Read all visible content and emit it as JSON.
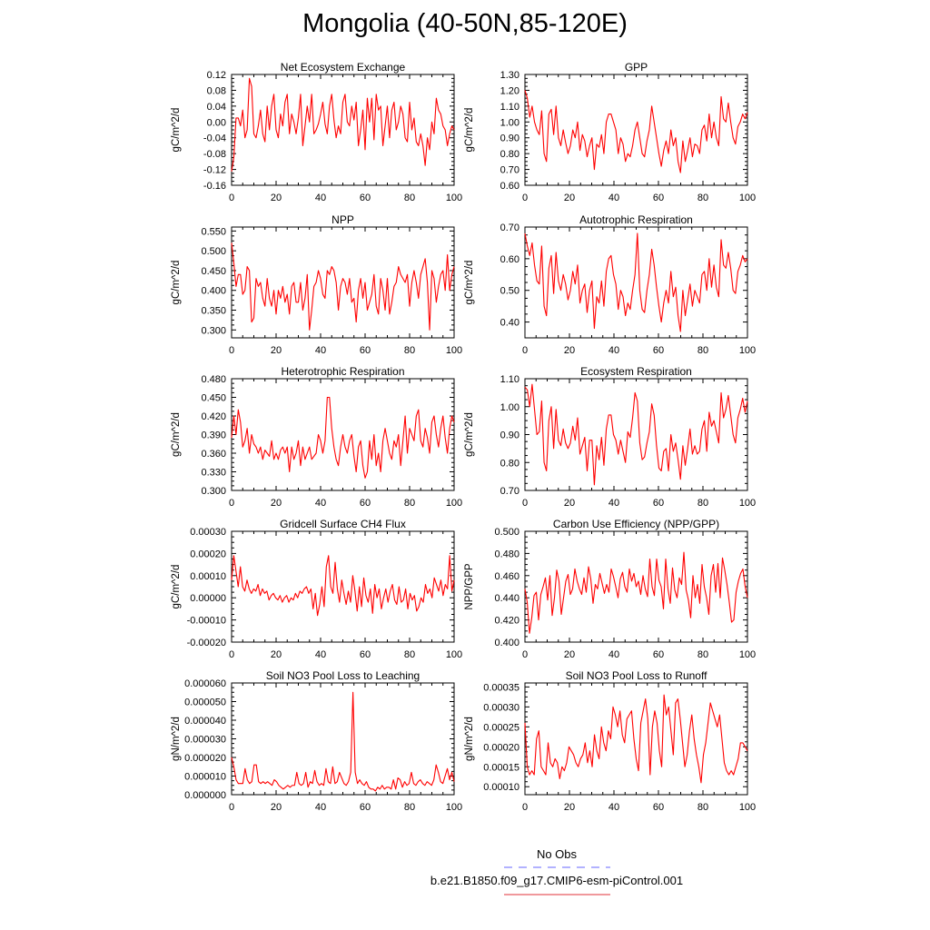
{
  "title": "Mongolia (40-50N,85-120E)",
  "legend": [
    {
      "label": "No Obs",
      "color": "#6666ff",
      "dash": true
    },
    {
      "label": "b.e21.B1850.f09_g17.CMIP6-esm-piControl.001",
      "color": "#e0303a",
      "dash": false
    }
  ],
  "line_color": "#ff0000",
  "chart_data": [
    {
      "type": "line",
      "title": "Net Ecosystem Exchange",
      "ylabel": "gC/m^2/d",
      "xlim": [
        0,
        100
      ],
      "ylim": [
        -0.16,
        0.12
      ],
      "xticks": [
        "0",
        "20",
        "40",
        "60",
        "80",
        "100"
      ],
      "yticks": [
        "-0.16",
        "-0.12",
        "-0.08",
        "-0.04",
        "0.00",
        "0.04",
        "0.08",
        "0.12"
      ],
      "values": [
        -0.125,
        -0.09,
        0.01,
        0.01,
        -0.01,
        0.03,
        -0.04,
        -0.02,
        0.11,
        0.09,
        -0.03,
        -0.04,
        -0.01,
        0.03,
        -0.03,
        -0.05,
        0.04,
        -0.02,
        0.04,
        0.07,
        -0.02,
        -0.04,
        0.02,
        -0.01,
        0.05,
        0.07,
        -0.03,
        0.02,
        0.0,
        -0.03,
        0.01,
        0.07,
        -0.06,
        -0.01,
        0.04,
        0.0,
        0.07,
        -0.03,
        -0.02,
        -0.005,
        0.02,
        0.05,
        -0.005,
        -0.03,
        0.04,
        0.07,
        0.005,
        -0.04,
        -0.01,
        -0.03,
        0.05,
        0.07,
        0.0,
        -0.01,
        0.04,
        0.005,
        0.05,
        -0.06,
        -0.02,
        0.03,
        -0.07,
        0.06,
        0.0,
        0.06,
        -0.045,
        0.07,
        0.03,
        0.04,
        -0.06,
        -0.01,
        0.04,
        -0.04,
        0.03,
        0.05,
        -0.02,
        0.0,
        0.04,
        0.02,
        -0.04,
        -0.05,
        0.05,
        -0.02,
        0.01,
        -0.05,
        -0.06,
        -0.03,
        -0.06,
        -0.11,
        -0.04,
        -0.07,
        0.0,
        -0.03,
        0.06,
        0.03,
        0.02,
        -0.01,
        -0.02,
        -0.06,
        -0.03,
        -0.01,
        -0.02
      ]
    },
    {
      "type": "line",
      "title": "GPP",
      "ylabel": "gC/m^2/d",
      "xlim": [
        0,
        100
      ],
      "ylim": [
        0.6,
        1.3
      ],
      "xticks": [
        "0",
        "20",
        "40",
        "60",
        "80",
        "100"
      ],
      "yticks": [
        "0.60",
        "0.70",
        "0.80",
        "0.90",
        "1.00",
        "1.10",
        "1.20",
        "1.30"
      ],
      "values": [
        1.2,
        1.15,
        1.03,
        1.1,
        1.0,
        0.95,
        0.92,
        1.07,
        0.8,
        0.75,
        1.05,
        1.08,
        0.92,
        1.1,
        0.9,
        0.85,
        0.95,
        0.87,
        0.8,
        0.85,
        0.95,
        0.9,
        1.0,
        0.82,
        0.92,
        0.88,
        0.78,
        0.85,
        0.9,
        0.7,
        0.86,
        0.84,
        0.92,
        0.8,
        1.0,
        1.05,
        1.05,
        1.0,
        0.95,
        0.8,
        0.9,
        0.86,
        0.75,
        0.8,
        0.78,
        0.85,
        0.95,
        1.0,
        0.9,
        0.8,
        0.78,
        0.88,
        0.95,
        1.1,
        1.0,
        0.9,
        0.8,
        0.72,
        0.82,
        0.88,
        0.8,
        0.95,
        0.85,
        0.9,
        0.75,
        0.68,
        0.88,
        0.75,
        0.82,
        0.9,
        0.78,
        0.86,
        0.85,
        0.8,
        0.95,
        0.98,
        0.88,
        1.05,
        0.9,
        1.0,
        0.9,
        0.85,
        1.16,
        1.02,
        1.0,
        1.12,
        1.0,
        0.9,
        0.86,
        0.97,
        1.0,
        1.05,
        1.02,
        1.06
      ]
    },
    {
      "type": "line",
      "title": "NPP",
      "ylabel": "gC/m^2/d",
      "xlim": [
        0,
        100
      ],
      "ylim": [
        0.28,
        0.56
      ],
      "xticks": [
        "0",
        "20",
        "40",
        "60",
        "80",
        "100"
      ],
      "yticks": [
        "0.300",
        "0.350",
        "0.400",
        "0.450",
        "0.500",
        "0.550"
      ],
      "values": [
        0.52,
        0.47,
        0.41,
        0.44,
        0.44,
        0.39,
        0.4,
        0.46,
        0.45,
        0.32,
        0.33,
        0.43,
        0.41,
        0.42,
        0.38,
        0.36,
        0.43,
        0.38,
        0.36,
        0.4,
        0.34,
        0.4,
        0.38,
        0.41,
        0.37,
        0.39,
        0.34,
        0.41,
        0.42,
        0.37,
        0.37,
        0.42,
        0.35,
        0.38,
        0.44,
        0.3,
        0.35,
        0.41,
        0.42,
        0.45,
        0.43,
        0.39,
        0.38,
        0.45,
        0.44,
        0.46,
        0.45,
        0.42,
        0.35,
        0.41,
        0.43,
        0.42,
        0.39,
        0.43,
        0.37,
        0.38,
        0.32,
        0.4,
        0.43,
        0.38,
        0.42,
        0.35,
        0.37,
        0.39,
        0.44,
        0.36,
        0.34,
        0.43,
        0.4,
        0.35,
        0.43,
        0.34,
        0.37,
        0.41,
        0.42,
        0.46,
        0.44,
        0.43,
        0.42,
        0.44,
        0.36,
        0.42,
        0.45,
        0.42,
        0.38,
        0.44,
        0.46,
        0.48,
        0.42,
        0.3,
        0.45,
        0.43,
        0.37,
        0.41,
        0.44,
        0.45,
        0.4,
        0.49,
        0.4,
        0.44,
        0.46
      ]
    },
    {
      "type": "line",
      "title": "Autotrophic Respiration",
      "ylabel": "gC/m^2/d",
      "xlim": [
        0,
        100
      ],
      "ylim": [
        0.35,
        0.7
      ],
      "xticks": [
        "0",
        "20",
        "40",
        "60",
        "80",
        "100"
      ],
      "yticks": [
        "0.40",
        "0.50",
        "0.60",
        "0.70"
      ],
      "values": [
        0.68,
        0.64,
        0.61,
        0.65,
        0.58,
        0.53,
        0.52,
        0.64,
        0.45,
        0.42,
        0.57,
        0.61,
        0.49,
        0.62,
        0.53,
        0.5,
        0.55,
        0.52,
        0.47,
        0.5,
        0.56,
        0.52,
        0.58,
        0.46,
        0.5,
        0.52,
        0.43,
        0.5,
        0.53,
        0.38,
        0.48,
        0.46,
        0.53,
        0.45,
        0.56,
        0.6,
        0.61,
        0.55,
        0.52,
        0.44,
        0.5,
        0.48,
        0.42,
        0.46,
        0.44,
        0.5,
        0.55,
        0.68,
        0.5,
        0.44,
        0.43,
        0.5,
        0.55,
        0.63,
        0.58,
        0.51,
        0.45,
        0.4,
        0.46,
        0.5,
        0.46,
        0.56,
        0.48,
        0.51,
        0.42,
        0.37,
        0.5,
        0.42,
        0.47,
        0.52,
        0.45,
        0.5,
        0.48,
        0.46,
        0.55,
        0.56,
        0.5,
        0.6,
        0.51,
        0.58,
        0.51,
        0.48,
        0.66,
        0.58,
        0.57,
        0.62,
        0.57,
        0.5,
        0.49,
        0.56,
        0.58,
        0.61,
        0.59,
        0.6
      ]
    },
    {
      "type": "line",
      "title": "Heterotrophic Respiration",
      "ylabel": "gC/m^2/d",
      "xlim": [
        0,
        100
      ],
      "ylim": [
        0.3,
        0.48
      ],
      "xticks": [
        "0",
        "20",
        "40",
        "60",
        "80",
        "100"
      ],
      "yticks": [
        "0.300",
        "0.330",
        "0.360",
        "0.390",
        "0.420",
        "0.450",
        "0.480"
      ],
      "values": [
        0.385,
        0.42,
        0.39,
        0.43,
        0.41,
        0.37,
        0.38,
        0.4,
        0.36,
        0.39,
        0.375,
        0.37,
        0.36,
        0.37,
        0.35,
        0.365,
        0.36,
        0.355,
        0.38,
        0.35,
        0.36,
        0.35,
        0.365,
        0.37,
        0.36,
        0.37,
        0.33,
        0.37,
        0.35,
        0.36,
        0.38,
        0.34,
        0.37,
        0.35,
        0.36,
        0.37,
        0.35,
        0.355,
        0.36,
        0.39,
        0.38,
        0.36,
        0.38,
        0.45,
        0.45,
        0.4,
        0.37,
        0.35,
        0.34,
        0.37,
        0.39,
        0.37,
        0.36,
        0.38,
        0.39,
        0.355,
        0.33,
        0.37,
        0.38,
        0.34,
        0.32,
        0.33,
        0.38,
        0.35,
        0.39,
        0.34,
        0.36,
        0.33,
        0.38,
        0.4,
        0.38,
        0.36,
        0.35,
        0.38,
        0.37,
        0.39,
        0.34,
        0.38,
        0.42,
        0.36,
        0.4,
        0.39,
        0.38,
        0.42,
        0.43,
        0.38,
        0.37,
        0.4,
        0.385,
        0.36,
        0.41,
        0.42,
        0.39,
        0.37,
        0.4,
        0.42,
        0.385,
        0.36,
        0.4,
        0.42,
        0.41
      ]
    },
    {
      "type": "line",
      "title": "Ecosystem Respiration",
      "ylabel": "gC/m^2/d",
      "xlim": [
        0,
        100
      ],
      "ylim": [
        0.7,
        1.1
      ],
      "xticks": [
        "0",
        "20",
        "40",
        "60",
        "80",
        "100"
      ],
      "yticks": [
        "0.70",
        "0.80",
        "0.90",
        "1.00",
        "1.10"
      ],
      "values": [
        1.07,
        1.06,
        1.0,
        1.08,
        0.99,
        0.9,
        0.91,
        1.02,
        0.8,
        0.77,
        0.95,
        1.0,
        0.85,
        0.99,
        0.88,
        0.86,
        0.92,
        0.87,
        0.85,
        0.87,
        0.93,
        0.88,
        0.96,
        0.83,
        0.86,
        0.89,
        0.77,
        0.88,
        0.88,
        0.72,
        0.86,
        0.81,
        0.89,
        0.79,
        0.92,
        0.97,
        0.97,
        0.9,
        0.88,
        0.83,
        0.88,
        0.84,
        0.8,
        0.91,
        0.89,
        0.96,
        1.05,
        1.02,
        0.87,
        0.81,
        0.82,
        0.87,
        0.91,
        1.01,
        0.97,
        0.86,
        0.78,
        0.77,
        0.84,
        0.85,
        0.77,
        0.9,
        0.84,
        0.87,
        0.81,
        0.74,
        0.86,
        0.79,
        0.85,
        0.92,
        0.83,
        0.86,
        0.83,
        0.84,
        0.92,
        0.95,
        0.84,
        0.98,
        0.93,
        0.95,
        0.91,
        0.87,
        1.05,
        0.96,
        0.99,
        1.04,
        0.97,
        0.9,
        0.87,
        0.96,
        0.99,
        1.03,
        0.98,
        1.02
      ]
    },
    {
      "type": "line",
      "title": "Gridcell Surface CH4 Flux",
      "ylabel": "gC/m^2/d",
      "xlim": [
        0,
        100
      ],
      "ylim": [
        -0.0002,
        0.0003
      ],
      "xticks": [
        "0",
        "20",
        "40",
        "60",
        "80",
        "100"
      ],
      "yticks": [
        "-0.00020",
        "-0.00010",
        "0.00000",
        "0.00010",
        "0.00020",
        "0.00030"
      ],
      "values": [
        8e-05,
        0.00019,
        0.00012,
        5e-05,
        0.00014,
        5e-05,
        3e-05,
        8e-05,
        4e-05,
        2e-05,
        4e-05,
        3e-05,
        6e-05,
        1e-05,
        4e-05,
        2e-05,
        3e-05,
        -1e-05,
        1e-05,
        2e-05,
        0.0,
        -1e-05,
        1e-05,
        -2e-05,
        0.0,
        1e-05,
        -2e-05,
        0.0,
        -1e-05,
        2e-05,
        0.0,
        3e-05,
        2e-05,
        4e-05,
        5e-05,
        2e-05,
        4e-05,
        -5e-05,
        2e-05,
        -8e-05,
        -3e-05,
        5e-05,
        -4e-05,
        0.00014,
        0.00019,
        5e-05,
        2e-05,
        0.00016,
        4e-05,
        -2e-05,
        8e-05,
        2e-05,
        -3e-05,
        3e-05,
        -2e-05,
        0.0001,
        3e-05,
        -6e-05,
        5e-05,
        -4e-05,
        9e-05,
        1e-05,
        -2e-05,
        4e-05,
        -7e-05,
        6e-05,
        0.0,
        4e-05,
        -5e-05,
        0.0,
        4e-05,
        -2e-05,
        3e-05,
        6e-05,
        -1e-05,
        -3e-05,
        5e-05,
        -2e-05,
        -1e-05,
        4e-05,
        -5e-05,
        2e-05,
        -1e-05,
        1e-05,
        -6e-05,
        -4e-05,
        0.0,
        -2e-05,
        6e-05,
        2e-05,
        4e-05,
        0.0,
        9e-05,
        6e-05,
        3e-05,
        8e-05,
        1e-05,
        6e-05,
        4e-05,
        0.00019,
        3e-05,
        8e-05
      ]
    },
    {
      "type": "line",
      "title": "Carbon Use Efficiency (NPP/GPP)",
      "ylabel": "NPP/GPP",
      "xlim": [
        0,
        100
      ],
      "ylim": [
        0.4,
        0.5
      ],
      "xticks": [
        "0",
        "20",
        "40",
        "60",
        "80",
        "100"
      ],
      "yticks": [
        "0.400",
        "0.420",
        "0.440",
        "0.460",
        "0.480",
        "0.500"
      ],
      "values": [
        0.448,
        0.436,
        0.408,
        0.422,
        0.442,
        0.445,
        0.42,
        0.443,
        0.45,
        0.458,
        0.438,
        0.46,
        0.424,
        0.44,
        0.465,
        0.455,
        0.425,
        0.44,
        0.455,
        0.461,
        0.443,
        0.448,
        0.466,
        0.455,
        0.448,
        0.443,
        0.458,
        0.445,
        0.468,
        0.457,
        0.435,
        0.452,
        0.448,
        0.462,
        0.453,
        0.444,
        0.452,
        0.445,
        0.466,
        0.459,
        0.45,
        0.44,
        0.457,
        0.463,
        0.45,
        0.445,
        0.466,
        0.455,
        0.462,
        0.45,
        0.455,
        0.443,
        0.46,
        0.448,
        0.441,
        0.475,
        0.45,
        0.442,
        0.475,
        0.456,
        0.45,
        0.43,
        0.475,
        0.448,
        0.435,
        0.467,
        0.447,
        0.44,
        0.458,
        0.452,
        0.481,
        0.447,
        0.438,
        0.422,
        0.46,
        0.44,
        0.452,
        0.435,
        0.47,
        0.45,
        0.44,
        0.425,
        0.46,
        0.47,
        0.445,
        0.471,
        0.44,
        0.476,
        0.465,
        0.452,
        0.436,
        0.418,
        0.42,
        0.445,
        0.455,
        0.462,
        0.466,
        0.45,
        0.44
      ]
    },
    {
      "type": "line",
      "title": "Soil NO3 Pool Loss to Leaching",
      "ylabel": "gN/m^2/d",
      "xlim": [
        0,
        100
      ],
      "ylim": [
        0,
        6e-05
      ],
      "xticks": [
        "0",
        "20",
        "40",
        "60",
        "80",
        "100"
      ],
      "yticks": [
        "0.000000",
        "0.000010",
        "0.000020",
        "0.000030",
        "0.000040",
        "0.000050",
        "0.000060"
      ],
      "values": [
        2e-05,
        1.5e-05,
        8e-06,
        6e-06,
        6e-06,
        6e-06,
        1.4e-05,
        8e-06,
        6e-06,
        7e-06,
        1.6e-05,
        1.6e-05,
        7e-06,
        6e-06,
        7e-06,
        6e-06,
        7e-06,
        6e-06,
        5e-06,
        8e-06,
        7e-06,
        5e-06,
        4e-06,
        3e-06,
        4e-06,
        5e-06,
        4e-06,
        5e-06,
        5e-06,
        1.2e-05,
        6e-06,
        5e-06,
        6e-06,
        1.2e-05,
        4e-06,
        7e-06,
        6e-06,
        1.3e-05,
        7e-06,
        5e-06,
        6e-06,
        5e-06,
        1.4e-05,
        7e-06,
        6e-06,
        1.5e-05,
        6e-06,
        7e-06,
        1.2e-05,
        9e-06,
        6e-06,
        5e-06,
        7e-06,
        1.2e-05,
        5.5e-05,
        1.2e-05,
        6e-06,
        8e-06,
        6e-06,
        5e-06,
        7e-06,
        4e-06,
        3e-06,
        3e-06,
        2e-06,
        4e-06,
        3e-06,
        5e-06,
        3e-06,
        4e-06,
        4e-06,
        3e-06,
        8e-06,
        3e-06,
        9e-06,
        8e-06,
        4e-06,
        7e-06,
        5e-06,
        6e-06,
        1.2e-05,
        6e-06,
        5e-06,
        7e-06,
        8e-06,
        6e-06,
        5e-06,
        7e-06,
        6e-06,
        5e-06,
        8e-06,
        1.6e-05,
        1.2e-05,
        7e-06,
        6e-06,
        1e-05,
        1.4e-05,
        8e-06,
        1.2e-05,
        7e-06
      ]
    },
    {
      "type": "line",
      "title": "Soil NO3 Pool Loss to Runoff",
      "ylabel": "gN/m^2/d",
      "xlim": [
        0,
        100
      ],
      "ylim": [
        8e-05,
        0.00036
      ],
      "xticks": [
        "0",
        "20",
        "40",
        "60",
        "80",
        "100"
      ],
      "yticks": [
        "0.00010",
        "0.00015",
        "0.00020",
        "0.00025",
        "0.00030",
        "0.00035"
      ],
      "values": [
        0.00026,
        0.00015,
        0.00013,
        0.00014,
        0.00013,
        0.00022,
        0.00024,
        0.00015,
        0.00014,
        0.00013,
        0.00021,
        0.00016,
        0.00015,
        0.00017,
        0.00016,
        0.00012,
        0.00015,
        0.00014,
        0.00016,
        0.0002,
        0.00019,
        0.00018,
        0.00016,
        0.00015,
        0.00017,
        0.00018,
        0.00021,
        0.00016,
        0.00019,
        0.00015,
        0.00023,
        0.00019,
        0.00017,
        0.00025,
        0.00021,
        0.00019,
        0.00024,
        0.00022,
        0.0003,
        0.00028,
        0.00025,
        0.00029,
        0.00023,
        0.00021,
        0.00027,
        0.00028,
        0.00029,
        0.00022,
        0.00017,
        0.00014,
        0.00026,
        0.00029,
        0.00032,
        0.00027,
        0.00013,
        0.00025,
        0.00029,
        0.00026,
        0.00019,
        0.00015,
        0.00033,
        0.00028,
        0.0003,
        0.00024,
        0.00018,
        0.00031,
        0.00032,
        0.00027,
        0.00021,
        0.00015,
        0.00018,
        0.00024,
        0.00028,
        0.00022,
        0.00018,
        0.00015,
        0.00011,
        0.00018,
        0.00021,
        0.00026,
        0.00031,
        0.00029,
        0.00027,
        0.00025,
        0.00028,
        0.00022,
        0.00016,
        0.00014,
        0.00013,
        0.00014,
        0.00013,
        0.00015,
        0.00017,
        0.00021,
        0.00021,
        0.0002,
        0.00019
      ]
    }
  ]
}
